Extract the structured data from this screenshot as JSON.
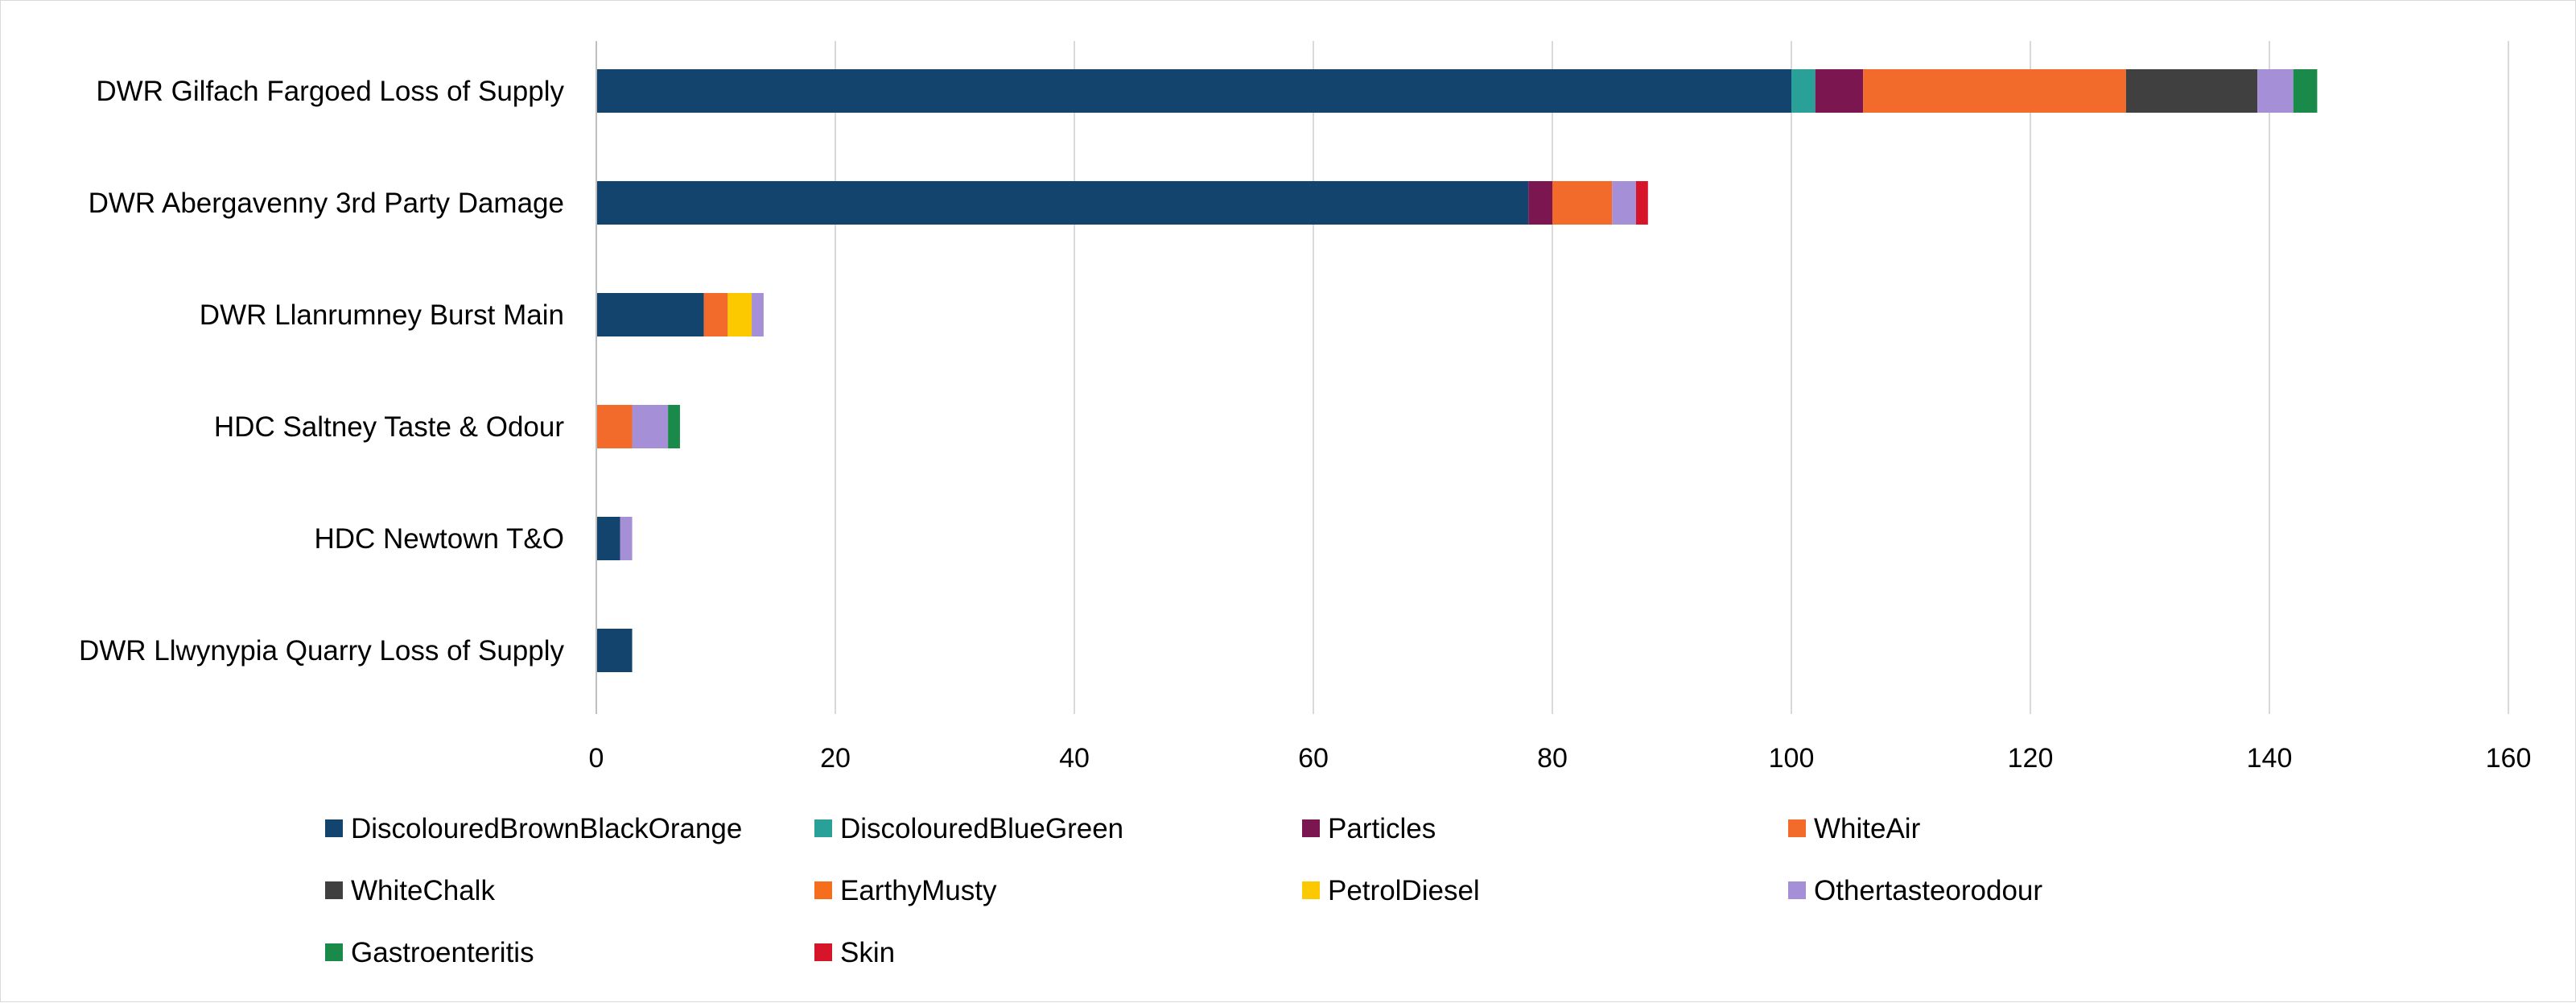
{
  "chart_data": {
    "type": "bar",
    "orientation": "horizontal",
    "stacked": true,
    "title": "",
    "xlabel": "",
    "ylabel": "",
    "xlim": [
      0,
      160
    ],
    "x_ticks": [
      0,
      20,
      40,
      60,
      80,
      100,
      120,
      140,
      160
    ],
    "grid": true,
    "legend_position": "bottom",
    "categories": [
      "DWR Gilfach Fargoed Loss of Supply",
      "DWR Abergavenny 3rd Party Damage",
      "DWR Llanrumney Burst Main",
      "HDC Saltney Taste & Odour",
      "HDC Newtown T&O",
      "DWR Llwynypia Quarry Loss of Supply"
    ],
    "series": [
      {
        "name": "DiscolouredBrownBlackOrange",
        "color": "#12446e",
        "values": [
          100,
          78,
          9,
          0,
          2,
          3
        ]
      },
      {
        "name": "DiscolouredBlueGreen",
        "color": "#2aa198",
        "values": [
          2,
          0,
          0,
          0,
          0,
          0
        ]
      },
      {
        "name": "Particles",
        "color": "#7b1650",
        "values": [
          4,
          2,
          0,
          0,
          0,
          0
        ]
      },
      {
        "name": "WhiteAir",
        "color": "#f26b2a",
        "values": [
          22,
          5,
          2,
          3,
          0,
          0
        ]
      },
      {
        "name": "WhiteChalk",
        "color": "#404040",
        "values": [
          11,
          0,
          0,
          0,
          0,
          0
        ]
      },
      {
        "name": "EarthyMusty",
        "color": "#f46e1e",
        "values": [
          0,
          0,
          0,
          0,
          0,
          0
        ]
      },
      {
        "name": "PetrolDiesel",
        "color": "#fcc800",
        "values": [
          0,
          0,
          2,
          0,
          0,
          0
        ]
      },
      {
        "name": "Othertasteorodour",
        "color": "#a58fd6",
        "values": [
          3,
          2,
          1,
          3,
          1,
          0
        ]
      },
      {
        "name": "Gastroenteritis",
        "color": "#1a8a4a",
        "values": [
          2,
          0,
          0,
          1,
          0,
          0
        ]
      },
      {
        "name": "Skin",
        "color": "#d6152b",
        "values": [
          0,
          1,
          0,
          0,
          0,
          0
        ]
      }
    ]
  }
}
